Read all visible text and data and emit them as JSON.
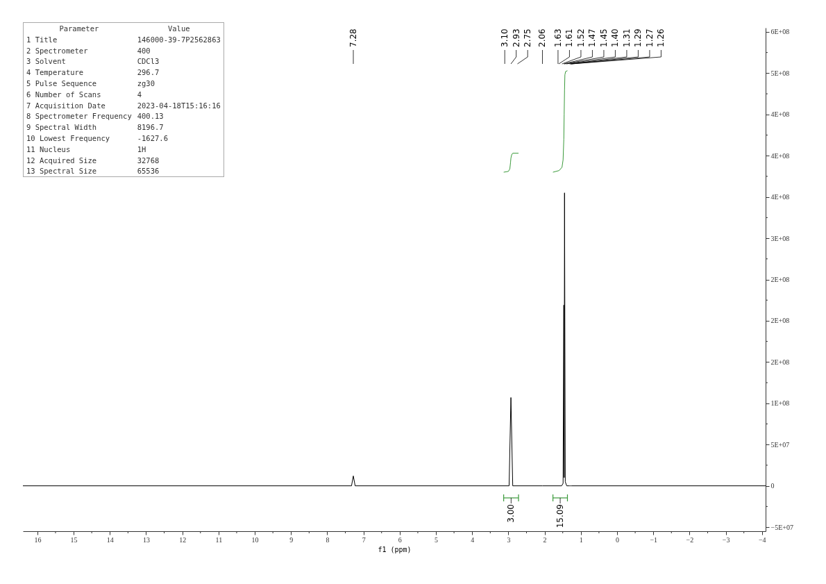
{
  "chart_data": [
    {
      "type": "other",
      "categories": [
        "Parameter",
        "Value"
      ],
      "y_categories": [
        "1 Title",
        "2 Spectrometer",
        "3 Solvent",
        "4 Temperature",
        "5 Pulse Sequence",
        "6 Number of Scans",
        "7 Acquisition Date",
        "8 Spectrometer Frequency",
        "9 Spectral Width",
        "10 Lowest Frequency",
        "11 Nucleus",
        "12 Acquired Size",
        "13 Spectral Size"
      ],
      "cell_labels": [
        [
          "146000-39-7P2562863"
        ],
        [
          "400"
        ],
        [
          "CDCl3"
        ],
        [
          "296.7"
        ],
        [
          "zg30"
        ],
        [
          "4"
        ],
        [
          "2023-04-18T15:16:16"
        ],
        [
          "400.13"
        ],
        [
          "8196.7"
        ],
        [
          "-1627.6"
        ],
        [
          "1H"
        ],
        [
          "32768"
        ],
        [
          "65536"
        ]
      ]
    },
    {
      "type": "line",
      "xlabel": "f1 (ppm)",
      "series": [
        {
          "color": "#000000",
          "x": [
            16.4,
            7.33,
            7.28,
            7.23,
            2.98,
            2.93,
            2.88,
            2.06,
            1.53,
            1.49,
            1.47,
            1.46,
            1.45,
            1.43,
            1.39,
            1.31,
            1.29,
            1.27,
            1.26,
            -4.1
          ],
          "values": [
            0,
            0,
            12000000,
            0,
            0,
            107000000,
            0,
            0,
            0,
            3000000,
            219000000,
            10000000,
            355000000,
            5000000,
            0,
            0,
            0,
            0,
            0,
            0
          ]
        },
        {
          "color": "#3a9a3a",
          "x": [
            3.13,
            3.0,
            2.96,
            2.94,
            2.93,
            2.91,
            2.88,
            2.72
          ],
          "values": [
            380000000,
            381000000,
            384000000,
            392000000,
            397000000,
            401000000,
            403000000,
            403000000
          ]
        },
        {
          "color": "#3a9a3a",
          "x": [
            1.77,
            1.6,
            1.52,
            1.49,
            1.47,
            1.46,
            1.45,
            1.44,
            1.42,
            1.37
          ],
          "values": [
            380000000,
            382000000,
            386000000,
            395000000,
            420000000,
            450000000,
            480000000,
            498000000,
            502000000,
            503000000
          ]
        }
      ],
      "xlim": [
        16.4,
        -4.1
      ],
      "xticks": [
        16,
        {
          "value": 15.5,
          "label": null
        },
        15,
        {
          "value": 14.5,
          "label": null
        },
        14,
        {
          "value": 13.5,
          "label": null
        },
        13,
        {
          "value": 12.5,
          "label": null
        },
        12,
        {
          "value": 11.5,
          "label": null
        },
        11,
        {
          "value": 10.5,
          "label": null
        },
        10,
        {
          "value": 9.5,
          "label": null
        },
        9,
        {
          "value": 8.5,
          "label": null
        },
        8,
        {
          "value": 7.5,
          "label": null
        },
        7,
        {
          "value": 6.5,
          "label": null
        },
        6,
        {
          "value": 5.5,
          "label": null
        },
        5,
        {
          "value": 4.5,
          "label": null
        },
        4,
        {
          "value": 3.5,
          "label": null
        },
        3,
        {
          "value": 2.5,
          "label": null
        },
        2,
        {
          "value": 1.5,
          "label": null
        },
        1,
        {
          "value": 0.5,
          "label": null
        },
        0,
        {
          "value": -0.5,
          "label": null
        },
        {
          "value": -1,
          "label": "−1"
        },
        {
          "value": -1.5,
          "label": null
        },
        {
          "value": -2,
          "label": "−2"
        },
        {
          "value": -2.5,
          "label": null
        },
        {
          "value": -3,
          "label": "−3"
        },
        {
          "value": -3.5,
          "label": null
        },
        {
          "value": -4,
          "label": "−4"
        }
      ],
      "ylim": [
        -55000000,
        555000000
      ],
      "yticks": [
        {
          "value": -50000000,
          "label": "−5E+07"
        },
        {
          "value": -25000000,
          "label": null
        },
        0,
        {
          "value": 25000000,
          "label": null
        },
        {
          "value": 50000000,
          "label": "5E+07"
        },
        {
          "value": 75000000,
          "label": null
        },
        {
          "value": 100000000,
          "label": "1E+08"
        },
        {
          "value": 125000000,
          "label": null
        },
        {
          "value": 150000000,
          "label": "2E+08"
        },
        {
          "value": 175000000,
          "label": null
        },
        {
          "value": 200000000,
          "label": "2E+08"
        },
        {
          "value": 225000000,
          "label": null
        },
        {
          "value": 250000000,
          "label": "2E+08"
        },
        {
          "value": 275000000,
          "label": null
        },
        {
          "value": 300000000,
          "label": "3E+08"
        },
        {
          "value": 325000000,
          "label": null
        },
        {
          "value": 350000000,
          "label": "4E+08"
        },
        {
          "value": 375000000,
          "label": null
        },
        {
          "value": 400000000,
          "label": "4E+08"
        },
        {
          "value": 425000000,
          "label": null
        },
        {
          "value": 450000000,
          "label": "4E+08"
        },
        {
          "value": 475000000,
          "label": null
        },
        {
          "value": 500000000,
          "label": "5E+08"
        },
        {
          "value": 525000000,
          "label": null
        },
        {
          "value": 550000000,
          "label": "6E+08"
        }
      ],
      "grid": false,
      "annotations": [
        {
          "text": "7.28",
          "x": 7.28
        },
        {
          "text": "3.10",
          "x": 3.1
        },
        {
          "text": "2.93",
          "x": 2.93
        },
        {
          "text": "2.75",
          "x": 2.75
        },
        {
          "text": "2.06",
          "x": 2.06
        },
        {
          "text": "1.63",
          "x": 1.63
        },
        {
          "text": "1.61",
          "x": 1.61
        },
        {
          "text": "1.52",
          "x": 1.52
        },
        {
          "text": "1.47",
          "x": 1.47
        },
        {
          "text": "1.45",
          "x": 1.45
        },
        {
          "text": "1.40",
          "x": 1.4
        },
        {
          "text": "1.31",
          "x": 1.31
        },
        {
          "text": "1.29",
          "x": 1.29
        },
        {
          "text": "1.27",
          "x": 1.27
        },
        {
          "text": "1.26",
          "x": 1.26
        },
        "3.00",
        "15.09"
      ]
    }
  ]
}
